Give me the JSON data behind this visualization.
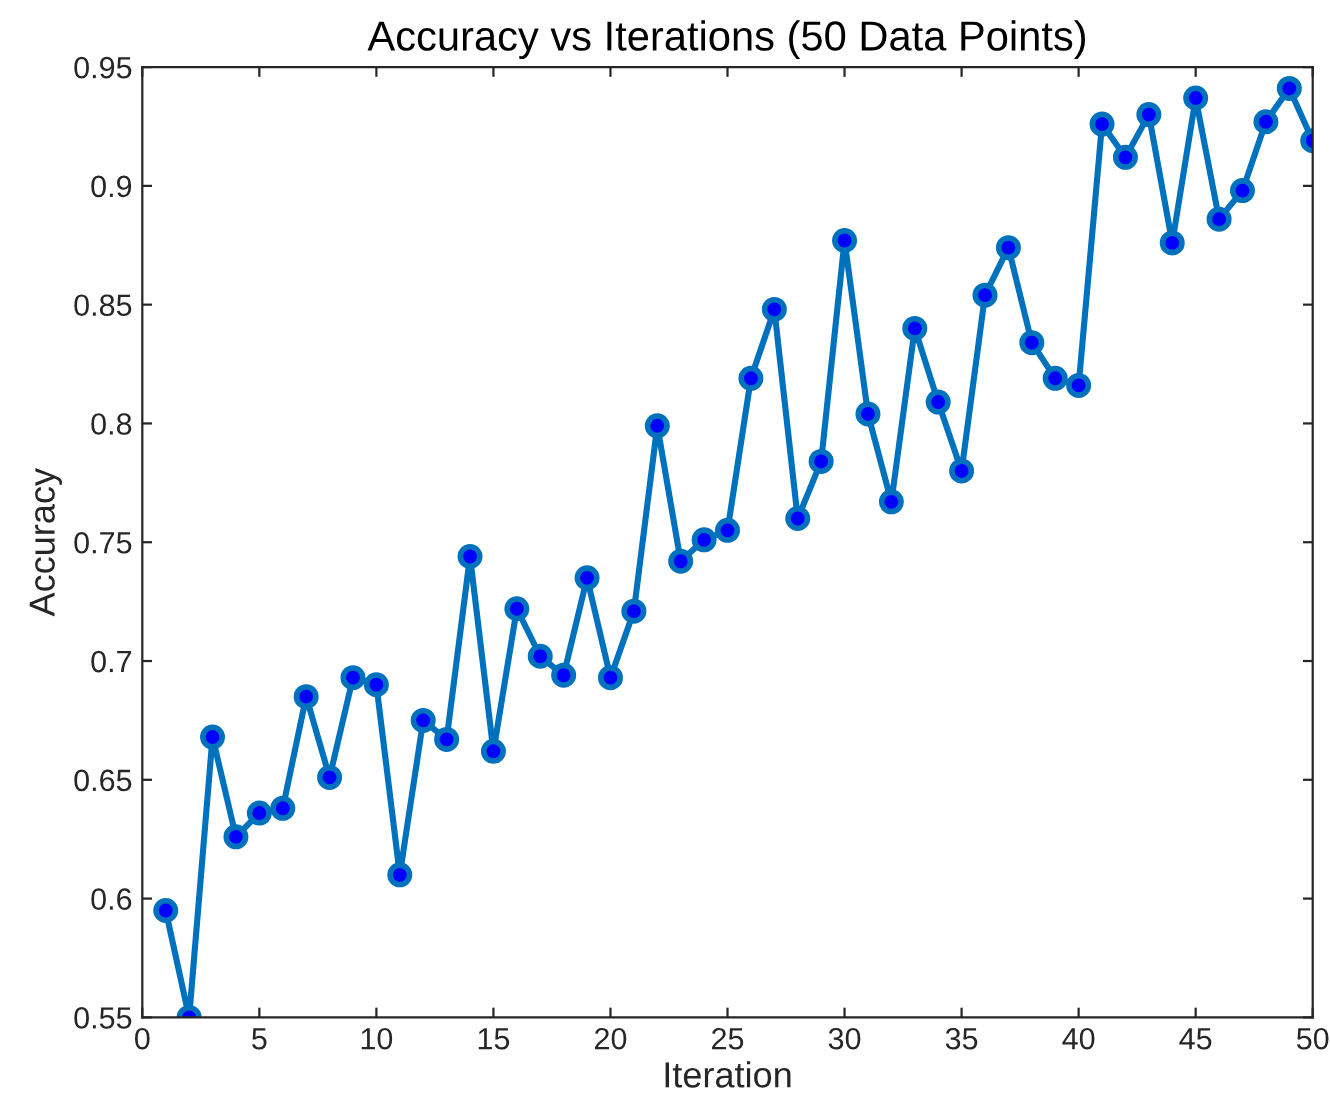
{
  "chart_data": {
    "type": "line",
    "title": "Accuracy vs Iterations (50 Data Points)",
    "xlabel": "Iteration",
    "ylabel": "Accuracy",
    "x": [
      1,
      2,
      3,
      4,
      5,
      6,
      7,
      8,
      9,
      10,
      11,
      12,
      13,
      14,
      15,
      16,
      17,
      18,
      19,
      20,
      21,
      22,
      23,
      24,
      25,
      26,
      27,
      28,
      29,
      30,
      31,
      32,
      33,
      34,
      35,
      36,
      37,
      38,
      39,
      40,
      41,
      42,
      43,
      44,
      45,
      46,
      47,
      48,
      49,
      50
    ],
    "series": [
      {
        "color": "#0072bd",
        "values": [
          0.595,
          0.55,
          0.668,
          0.626,
          0.636,
          0.638,
          0.685,
          0.651,
          0.693,
          0.69,
          0.61,
          0.675,
          0.667,
          0.744,
          0.662,
          0.722,
          0.702,
          0.694,
          0.735,
          0.693,
          0.721,
          0.799,
          0.742,
          0.751,
          0.755,
          0.819,
          0.848,
          0.76,
          0.784,
          0.877,
          0.804,
          0.767,
          0.84,
          0.809,
          0.78,
          0.854,
          0.874,
          0.834,
          0.819,
          0.816,
          0.926,
          0.912,
          0.93,
          0.876,
          0.937,
          0.886,
          0.898,
          0.927,
          0.941,
          0.919
        ]
      }
    ],
    "xlim": [
      0,
      50
    ],
    "xticks": [
      0,
      5,
      10,
      15,
      20,
      25,
      30,
      35,
      40,
      45,
      50
    ],
    "ylim": [
      0.55,
      0.95
    ],
    "yticks": [
      0.55,
      0.6,
      0.65,
      0.7,
      0.75,
      0.8,
      0.85,
      0.9,
      0.95
    ],
    "marker": "circle",
    "line_style": "solid",
    "grid": false,
    "legend": false
  }
}
